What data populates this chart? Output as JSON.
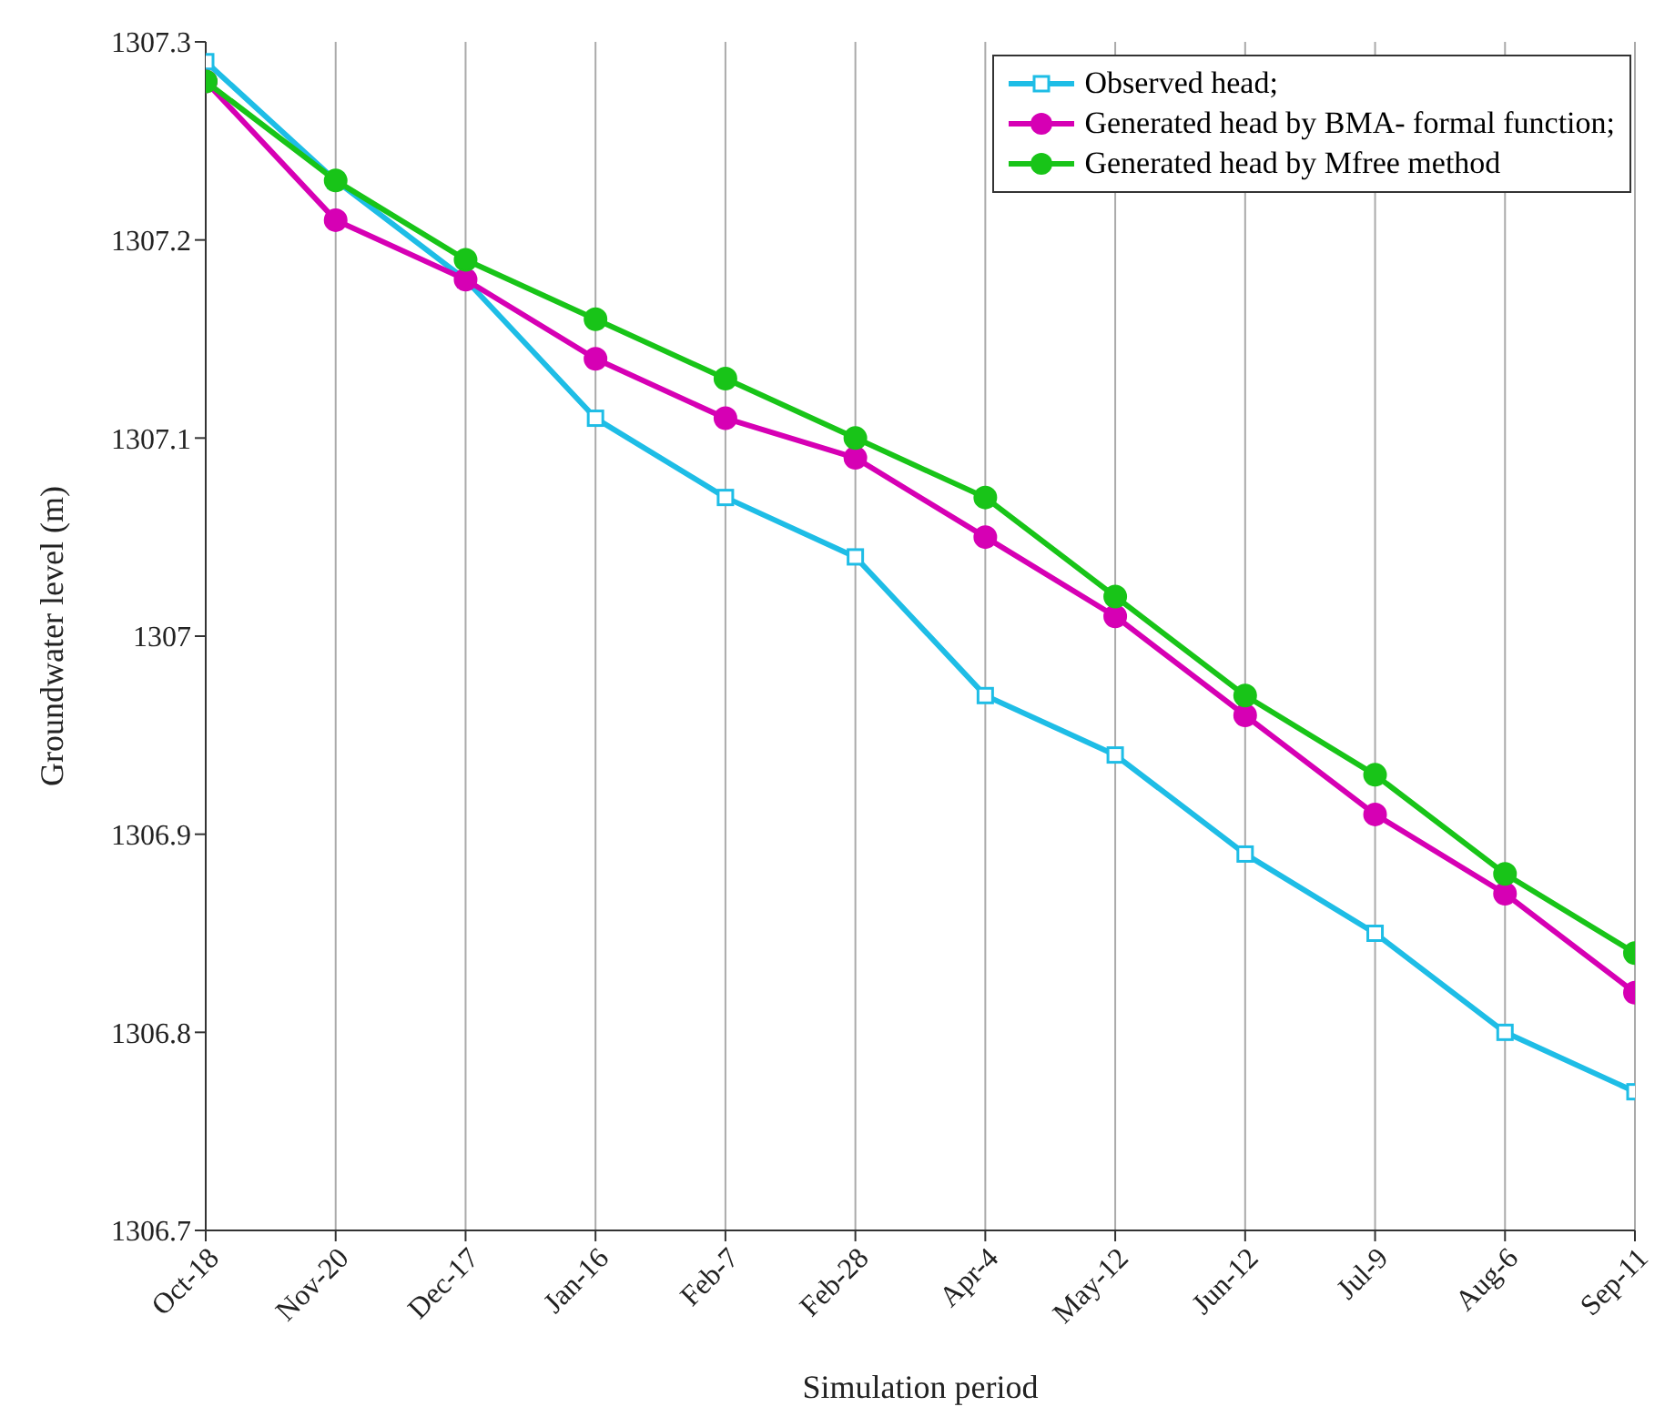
{
  "chart_data": {
    "type": "line",
    "xlabel": "Simulation period",
    "ylabel": "Groundwater level (m)",
    "categories": [
      "Oct-18",
      "Nov-20",
      "Dec-17",
      "Jan-16",
      "Feb-7",
      "Feb-28",
      "Apr-4",
      "May-12",
      "Jun-12",
      "Jul-9",
      "Aug-6",
      "Sep-11"
    ],
    "series": [
      {
        "name": "Observed head;",
        "color": "#1ebde6",
        "marker": "square",
        "values": [
          1307.29,
          1307.23,
          1307.18,
          1307.11,
          1307.07,
          1307.04,
          1306.97,
          1306.94,
          1306.89,
          1306.85,
          1306.8,
          1306.77
        ]
      },
      {
        "name": "Generated head by BMA- formal function;",
        "color": "#d600b4",
        "marker": "circle",
        "values": [
          1307.28,
          1307.21,
          1307.18,
          1307.14,
          1307.11,
          1307.09,
          1307.05,
          1307.01,
          1306.96,
          1306.91,
          1306.87,
          1306.82
        ]
      },
      {
        "name": "Generated head by Mfree method",
        "color": "#18c418",
        "marker": "circle",
        "values": [
          1307.28,
          1307.23,
          1307.19,
          1307.16,
          1307.13,
          1307.1,
          1307.07,
          1307.02,
          1306.97,
          1306.93,
          1306.88,
          1306.84
        ]
      }
    ],
    "ylim": [
      1306.7,
      1307.3
    ],
    "yticks": [
      1306.7,
      1306.8,
      1306.9,
      1307,
      1307.1,
      1307.2,
      1307.3
    ],
    "grid": "x",
    "legend": "top right"
  }
}
